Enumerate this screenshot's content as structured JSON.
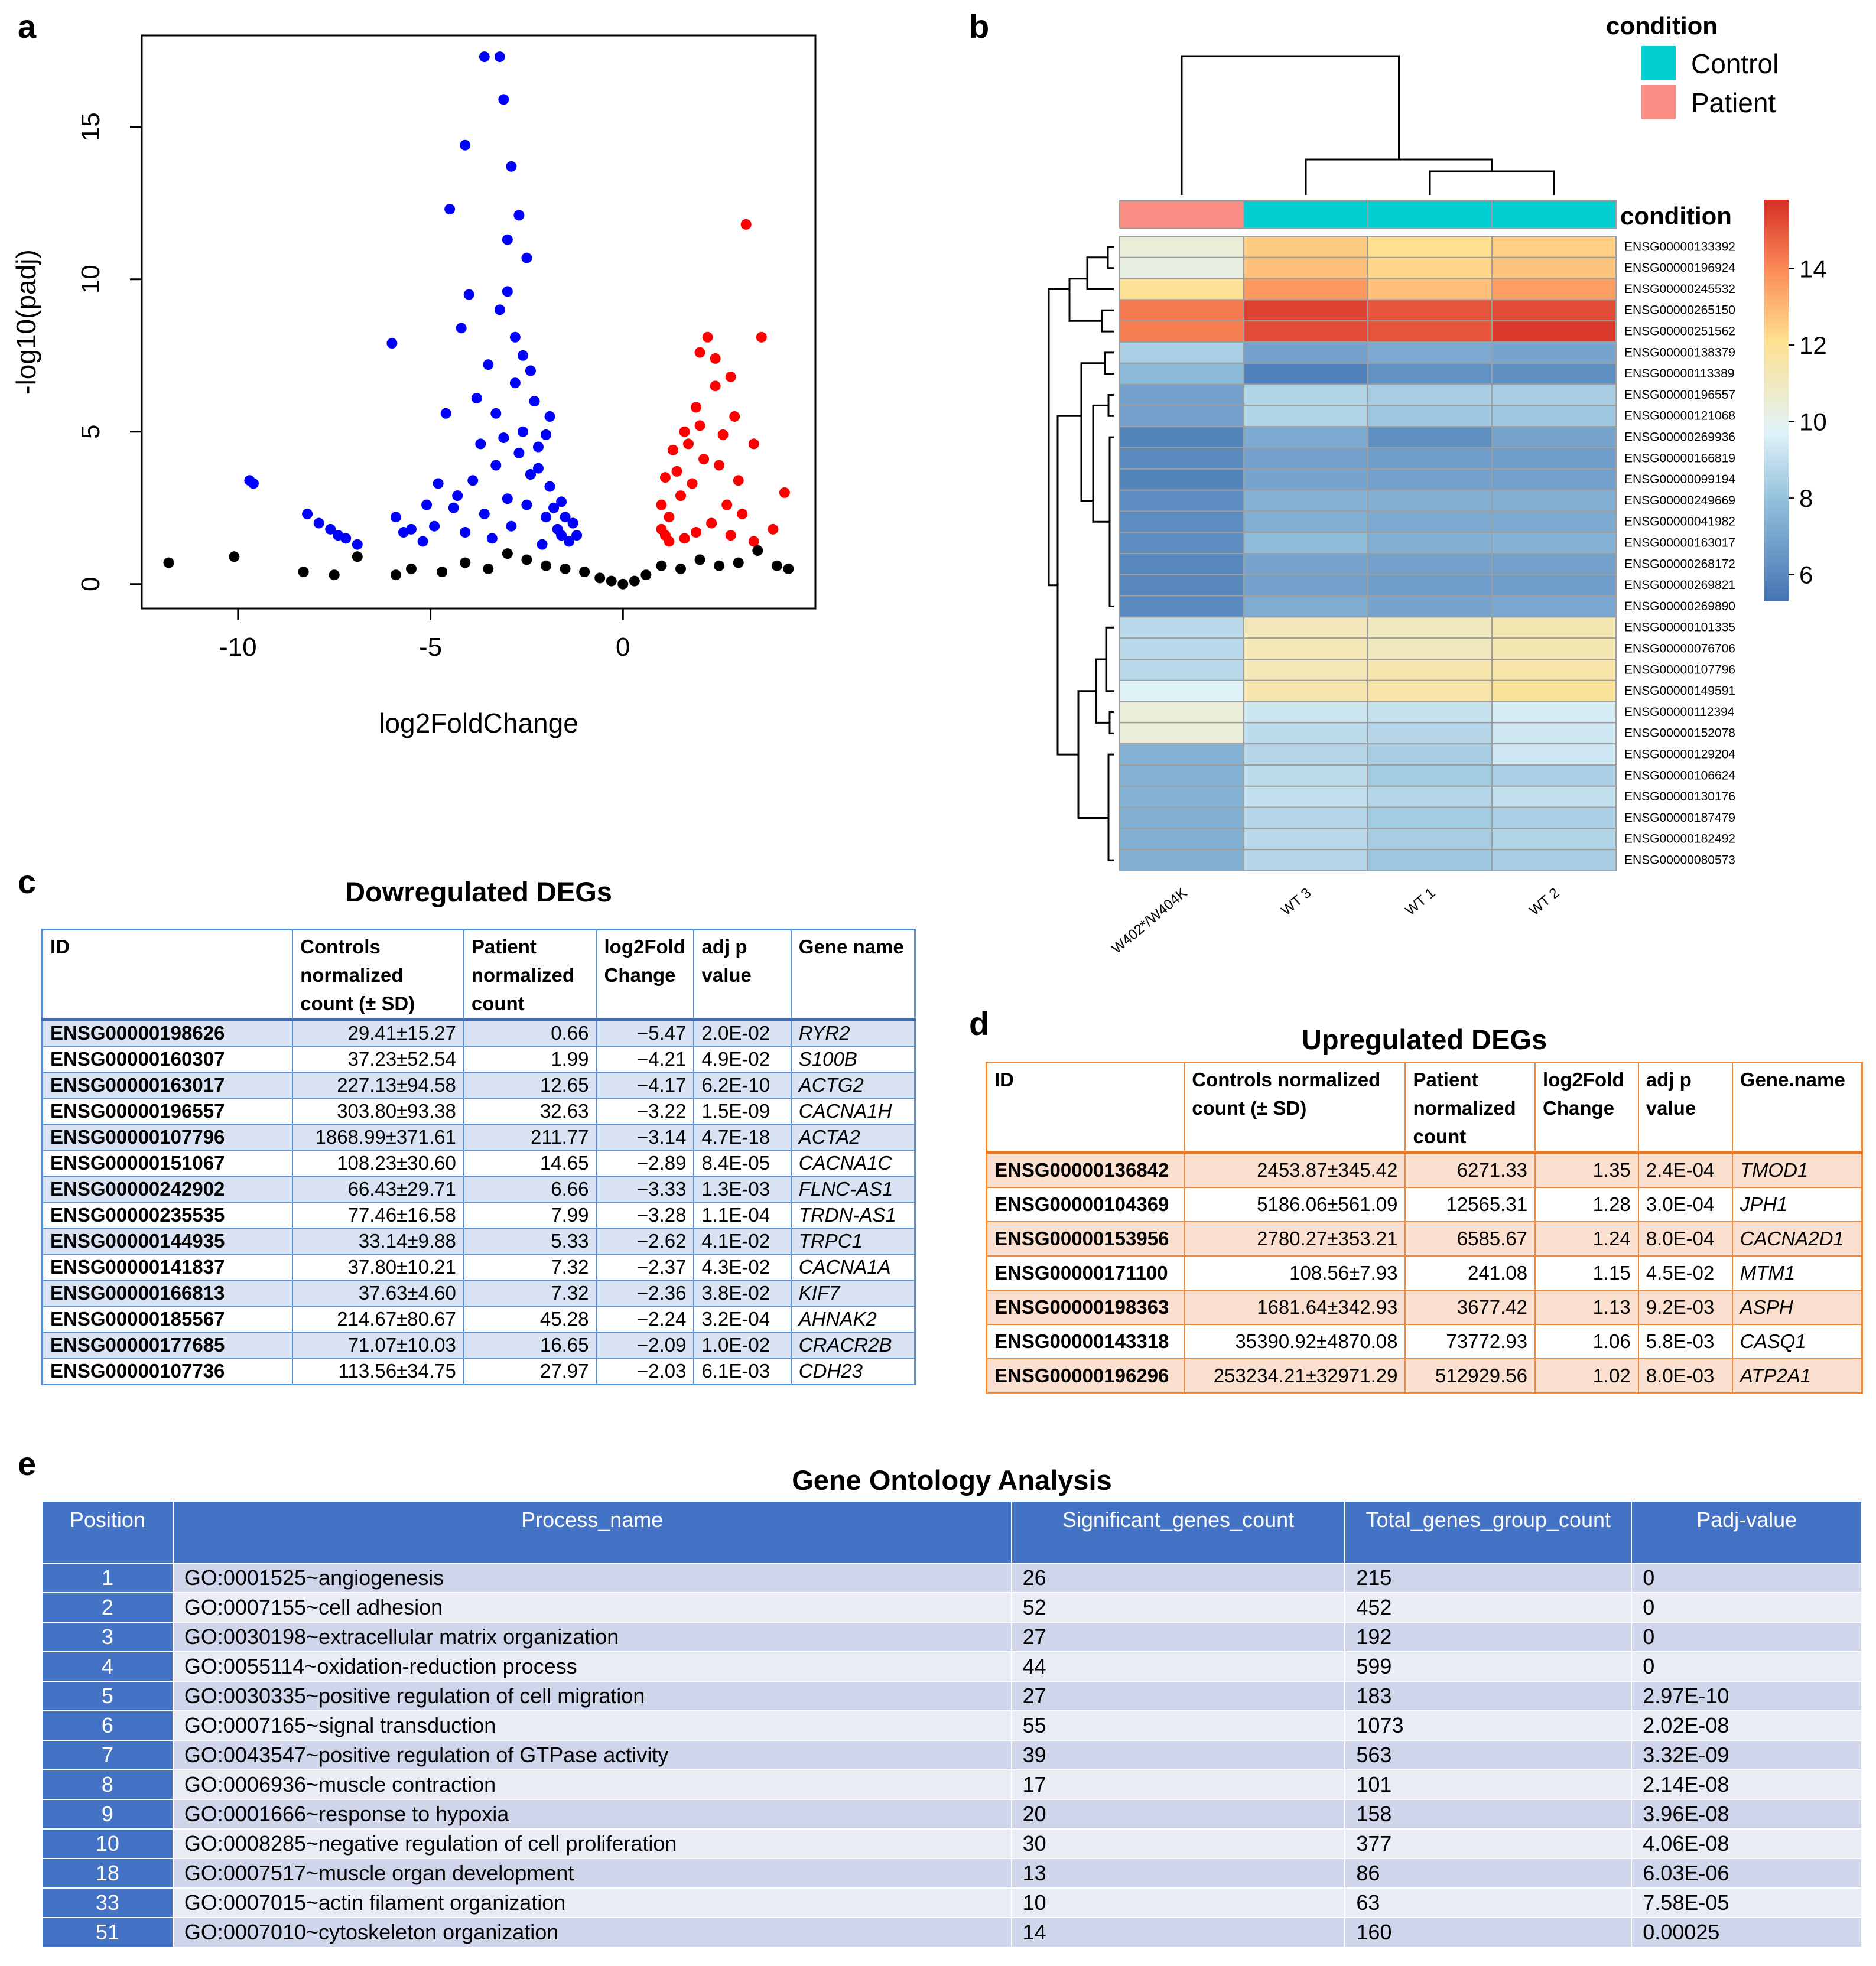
{
  "panels": {
    "a": "a",
    "b": "b",
    "c": "c",
    "d": "d",
    "e": "e"
  },
  "volcano": {
    "xlabel": "log2FoldChange",
    "ylabel": "-log10(padj)",
    "xticks": [
      "-10",
      "-5",
      "0"
    ],
    "yticks": [
      "0",
      "5",
      "10",
      "15"
    ],
    "colors": {
      "down": "#0000ff",
      "up": "#ff0000",
      "ns": "#000000"
    }
  },
  "chart_data": {
    "type": "scatter",
    "title": "",
    "xlabel": "log2FoldChange",
    "ylabel": "-log10(padj)",
    "xlim": [
      -12.5,
      5
    ],
    "ylim": [
      -0.8,
      18
    ],
    "series": [
      {
        "name": "downregulated",
        "color": "#0000ff",
        "points": [
          [
            -3.6,
            17.3
          ],
          [
            -3.2,
            17.3
          ],
          [
            -3.1,
            15.9
          ],
          [
            -4.1,
            14.4
          ],
          [
            -2.9,
            13.7
          ],
          [
            -4.5,
            12.3
          ],
          [
            -3.0,
            11.3
          ],
          [
            -4.0,
            9.5
          ],
          [
            -3.2,
            9.0
          ],
          [
            -4.2,
            8.4
          ],
          [
            -2.8,
            8.1
          ],
          [
            -6.0,
            7.9
          ],
          [
            -3.5,
            7.2
          ],
          [
            -2.6,
            7.5
          ],
          [
            -9.7,
            3.4
          ],
          [
            -9.6,
            3.3
          ],
          [
            -8.2,
            2.3
          ],
          [
            -7.9,
            2.0
          ],
          [
            -7.6,
            1.8
          ],
          [
            -7.4,
            1.6
          ],
          [
            -7.2,
            1.5
          ],
          [
            -6.9,
            1.3
          ],
          [
            -5.9,
            2.2
          ],
          [
            -5.5,
            1.8
          ],
          [
            -5.1,
            2.6
          ],
          [
            -4.8,
            3.3
          ],
          [
            -4.6,
            5.6
          ],
          [
            -3.8,
            6.1
          ],
          [
            -2.3,
            6.0
          ],
          [
            -1.9,
            5.5
          ],
          [
            -3.3,
            3.9
          ],
          [
            -2.7,
            4.3
          ],
          [
            -2.2,
            4.5
          ],
          [
            -1.6,
            2.7
          ],
          [
            -1.3,
            2.0
          ],
          [
            -5.2,
            1.4
          ],
          [
            -4.9,
            1.9
          ],
          [
            -4.3,
            2.9
          ],
          [
            -3.9,
            3.4
          ],
          [
            -2.5,
            2.6
          ],
          [
            -2.0,
            2.2
          ],
          [
            -1.6,
            1.6
          ],
          [
            -1.9,
            3.2
          ],
          [
            -2.4,
            3.6
          ],
          [
            -3.0,
            2.8
          ],
          [
            -3.6,
            2.3
          ],
          [
            -4.1,
            1.7
          ],
          [
            -3.4,
            1.5
          ],
          [
            -2.9,
            1.9
          ],
          [
            -2.1,
            1.3
          ],
          [
            -1.4,
            1.4
          ],
          [
            -1.2,
            1.6
          ],
          [
            -1.7,
            1.8
          ],
          [
            -2.6,
            5.0
          ],
          [
            -3.1,
            4.8
          ],
          [
            -2.2,
            3.8
          ],
          [
            -1.8,
            2.5
          ],
          [
            -4.4,
            2.5
          ],
          [
            -5.7,
            1.7
          ],
          [
            -3.7,
            4.6
          ],
          [
            -2.0,
            4.9
          ],
          [
            -1.5,
            2.2
          ],
          [
            -2.8,
            6.6
          ],
          [
            -3.3,
            5.6
          ],
          [
            -2.4,
            7.0
          ],
          [
            -3.0,
            9.6
          ],
          [
            -2.7,
            12.1
          ],
          [
            -2.5,
            10.7
          ]
        ]
      },
      {
        "name": "upregulated",
        "color": "#ff0000",
        "points": [
          [
            3.2,
            11.8
          ],
          [
            3.6,
            8.1
          ],
          [
            2.2,
            8.1
          ],
          [
            2.0,
            7.6
          ],
          [
            2.4,
            6.5
          ],
          [
            2.8,
            6.8
          ],
          [
            1.9,
            5.8
          ],
          [
            1.6,
            5.0
          ],
          [
            1.3,
            4.4
          ],
          [
            1.1,
            3.5
          ],
          [
            1.0,
            2.6
          ],
          [
            1.0,
            1.8
          ],
          [
            1.2,
            1.4
          ],
          [
            1.5,
            2.9
          ],
          [
            1.8,
            3.3
          ],
          [
            2.1,
            4.1
          ],
          [
            2.5,
            3.9
          ],
          [
            3.0,
            3.4
          ],
          [
            3.1,
            2.3
          ],
          [
            2.7,
            2.6
          ],
          [
            2.3,
            2.0
          ],
          [
            1.9,
            1.7
          ],
          [
            1.6,
            1.5
          ],
          [
            4.2,
            3.0
          ],
          [
            3.9,
            1.8
          ],
          [
            3.4,
            1.4
          ],
          [
            2.8,
            1.6
          ],
          [
            1.4,
            3.7
          ],
          [
            1.7,
            4.6
          ],
          [
            2.0,
            5.2
          ],
          [
            1.2,
            2.2
          ],
          [
            1.1,
            1.6
          ],
          [
            2.6,
            4.9
          ],
          [
            3.4,
            4.6
          ],
          [
            2.9,
            5.5
          ],
          [
            2.4,
            7.4
          ]
        ]
      },
      {
        "name": "not significant",
        "color": "#000000",
        "points": [
          [
            -11.8,
            0.7
          ],
          [
            -10.1,
            0.9
          ],
          [
            -8.3,
            0.4
          ],
          [
            -7.5,
            0.3
          ],
          [
            -6.9,
            0.9
          ],
          [
            -5.9,
            0.3
          ],
          [
            -5.5,
            0.5
          ],
          [
            -4.7,
            0.4
          ],
          [
            -4.1,
            0.7
          ],
          [
            -3.5,
            0.5
          ],
          [
            -3.0,
            1.0
          ],
          [
            -2.5,
            0.8
          ],
          [
            -2.0,
            0.6
          ],
          [
            -1.5,
            0.5
          ],
          [
            -1.0,
            0.4
          ],
          [
            -0.6,
            0.2
          ],
          [
            -0.3,
            0.1
          ],
          [
            0.0,
            0.0
          ],
          [
            0.3,
            0.1
          ],
          [
            0.6,
            0.3
          ],
          [
            1.0,
            0.6
          ],
          [
            1.5,
            0.5
          ],
          [
            2.0,
            0.8
          ],
          [
            2.5,
            0.6
          ],
          [
            3.0,
            0.7
          ],
          [
            3.5,
            1.1
          ],
          [
            4.0,
            0.6
          ],
          [
            4.3,
            0.5
          ]
        ]
      }
    ]
  },
  "heatmap": {
    "legend_title": "condition",
    "legend_items": [
      {
        "label": "Control",
        "color": "#00ced1"
      },
      {
        "label": "Patient",
        "color": "#fa8e85"
      }
    ],
    "annotation_label": "condition",
    "colorbar_ticks": [
      "14",
      "12",
      "10",
      "8",
      "6"
    ],
    "columns": [
      "W402*/W404K",
      "WT 3",
      "WT 1",
      "WT 2"
    ],
    "column_conditions": [
      "Patient",
      "Control",
      "Control",
      "Control"
    ],
    "genes": [
      "ENSG00000133392",
      "ENSG00000196924",
      "ENSG00000245532",
      "ENSG00000265150",
      "ENSG00000251562",
      "ENSG00000138379",
      "ENSG00000113389",
      "ENSG00000196557",
      "ENSG00000121068",
      "ENSG00000269936",
      "ENSG00000166819",
      "ENSG00000099194",
      "ENSG00000249669",
      "ENSG00000041982",
      "ENSG00000163017",
      "ENSG00000268172",
      "ENSG00000269821",
      "ENSG00000269890",
      "ENSG00000101335",
      "ENSG00000076706",
      "ENSG00000107796",
      "ENSG00000149591",
      "ENSG00000112394",
      "ENSG00000152078",
      "ENSG00000129204",
      "ENSG00000106624",
      "ENSG00000130176",
      "ENSG00000187479",
      "ENSG00000182492",
      "ENSG00000080573"
    ],
    "values": [
      [
        10.5,
        12.4,
        12.0,
        12.3
      ],
      [
        10.3,
        12.6,
        12.2,
        12.5
      ],
      [
        11.9,
        13.3,
        12.6,
        13.2
      ],
      [
        13.9,
        15.1,
        14.7,
        14.9
      ],
      [
        13.8,
        14.9,
        14.7,
        15.3
      ],
      [
        8.6,
        7.0,
        7.3,
        7.1
      ],
      [
        7.8,
        5.9,
        6.5,
        6.4
      ],
      [
        7.0,
        8.7,
        8.5,
        8.5
      ],
      [
        7.0,
        8.7,
        8.3,
        8.3
      ],
      [
        6.0,
        7.3,
        6.4,
        7.1
      ],
      [
        6.2,
        7.0,
        6.9,
        6.9
      ],
      [
        6.0,
        7.1,
        7.0,
        7.0
      ],
      [
        6.3,
        7.6,
        7.5,
        7.5
      ],
      [
        6.3,
        7.5,
        7.3,
        7.3
      ],
      [
        6.3,
        7.9,
        7.5,
        7.6
      ],
      [
        6.1,
        7.1,
        7.0,
        7.0
      ],
      [
        6.1,
        7.0,
        6.9,
        6.9
      ],
      [
        6.2,
        7.4,
        7.1,
        7.2
      ],
      [
        8.9,
        11.1,
        11.0,
        11.3
      ],
      [
        8.9,
        11.2,
        11.0,
        11.3
      ],
      [
        8.9,
        11.2,
        11.4,
        11.5
      ],
      [
        9.8,
        11.4,
        11.5,
        11.8
      ],
      [
        10.5,
        9.3,
        9.2,
        9.6
      ],
      [
        10.5,
        9.0,
        8.8,
        9.4
      ],
      [
        7.6,
        8.8,
        8.5,
        9.4
      ],
      [
        7.6,
        9.0,
        8.4,
        8.6
      ],
      [
        7.6,
        9.1,
        8.8,
        9.1
      ],
      [
        7.5,
        8.8,
        8.4,
        8.6
      ],
      [
        7.5,
        8.9,
        8.5,
        8.7
      ],
      [
        7.5,
        8.8,
        8.3,
        8.5
      ]
    ]
  },
  "down": {
    "title": "Dowregulated DEGs",
    "headers": [
      "ID",
      "Controls normalized count (± SD)",
      "Patient normalized count",
      "log2Fold Change",
      "adj p value",
      "Gene name"
    ],
    "rows": [
      [
        "ENSG00000198626",
        "29.41±15.27",
        "0.66",
        "−5.47",
        "2.0E-02",
        "RYR2"
      ],
      [
        "ENSG00000160307",
        "37.23±52.54",
        "1.99",
        "−4.21",
        "4.9E-02",
        "S100B"
      ],
      [
        "ENSG00000163017",
        "227.13±94.58",
        "12.65",
        "−4.17",
        "6.2E-10",
        "ACTG2"
      ],
      [
        "ENSG00000196557",
        "303.80±93.38",
        "32.63",
        "−3.22",
        "1.5E-09",
        "CACNA1H"
      ],
      [
        "ENSG00000107796",
        "1868.99±371.61",
        "211.77",
        "−3.14",
        "4.7E-18",
        "ACTA2"
      ],
      [
        "ENSG00000151067",
        "108.23±30.60",
        "14.65",
        "−2.89",
        "8.4E-05",
        "CACNA1C"
      ],
      [
        "ENSG00000242902",
        "66.43±29.71",
        "6.66",
        "−3.33",
        "1.3E-03",
        "FLNC-AS1"
      ],
      [
        "ENSG00000235535",
        "77.46±16.58",
        "7.99",
        "−3.28",
        "1.1E-04",
        "TRDN-AS1"
      ],
      [
        "ENSG00000144935",
        "33.14±9.88",
        "5.33",
        "−2.62",
        "4.1E-02",
        "TRPC1"
      ],
      [
        "ENSG00000141837",
        "37.80±10.21",
        "7.32",
        "−2.37",
        "4.3E-02",
        "CACNA1A"
      ],
      [
        "ENSG00000166813",
        "37.63±4.60",
        "7.32",
        "−2.36",
        "3.8E-02",
        "KIF7"
      ],
      [
        "ENSG00000185567",
        "214.67±80.67",
        "45.28",
        "−2.24",
        "3.2E-04",
        "AHNAK2"
      ],
      [
        "ENSG00000177685",
        "71.07±10.03",
        "16.65",
        "−2.09",
        "1.0E-02",
        "CRACR2B"
      ],
      [
        "ENSG00000107736",
        "113.56±34.75",
        "27.97",
        "−2.03",
        "6.1E-03",
        "CDH23"
      ]
    ]
  },
  "up": {
    "title": "Upregulated DEGs",
    "headers": [
      "ID",
      "Controls normalized count (± SD)",
      "Patient normalized count",
      "log2Fold Change",
      "adj p value",
      "Gene.name"
    ],
    "rows": [
      [
        "ENSG00000136842",
        "2453.87±345.42",
        "6271.33",
        "1.35",
        "2.4E-04",
        "TMOD1"
      ],
      [
        "ENSG00000104369",
        "5186.06±561.09",
        "12565.31",
        "1.28",
        "3.0E-04",
        "JPH1"
      ],
      [
        "ENSG00000153956",
        "2780.27±353.21",
        "6585.67",
        "1.24",
        "8.0E-04",
        "CACNA2D1"
      ],
      [
        "ENSG00000171100",
        "108.56±7.93",
        "241.08",
        "1.15",
        "4.5E-02",
        "MTM1"
      ],
      [
        "ENSG00000198363",
        "1681.64±342.93",
        "3677.42",
        "1.13",
        "9.2E-03",
        "ASPH"
      ],
      [
        "ENSG00000143318",
        "35390.92±4870.08",
        "73772.93",
        "1.06",
        "5.8E-03",
        "CASQ1"
      ],
      [
        "ENSG00000196296",
        "253234.21±32971.29",
        "512929.56",
        "1.02",
        "8.0E-03",
        "ATP2A1"
      ]
    ]
  },
  "go": {
    "title": "Gene Ontology Analysis",
    "headers": [
      "Position",
      "Process_name",
      "Significant_genes_count",
      "Total_genes_group_count",
      "Padj-value"
    ],
    "rows": [
      [
        "1",
        "GO:0001525~angiogenesis",
        "26",
        "215",
        "0"
      ],
      [
        "2",
        "GO:0007155~cell adhesion",
        "52",
        "452",
        "0"
      ],
      [
        "3",
        "GO:0030198~extracellular matrix organization",
        "27",
        "192",
        "0"
      ],
      [
        "4",
        "GO:0055114~oxidation-reduction process",
        "44",
        "599",
        "0"
      ],
      [
        "5",
        "GO:0030335~positive regulation of cell migration",
        "27",
        "183",
        "2.97E-10"
      ],
      [
        "6",
        "GO:0007165~signal transduction",
        "55",
        "1073",
        "2.02E-08"
      ],
      [
        "7",
        "GO:0043547~positive regulation of GTPase activity",
        "39",
        "563",
        "3.32E-09"
      ],
      [
        "8",
        "GO:0006936~muscle contraction",
        "17",
        "101",
        "2.14E-08"
      ],
      [
        "9",
        "GO:0001666~response to hypoxia",
        "20",
        "158",
        "3.96E-08"
      ],
      [
        "10",
        "GO:0008285~negative regulation of cell proliferation",
        "30",
        "377",
        "4.06E-08"
      ],
      [
        "18",
        "GO:0007517~muscle organ development",
        "13",
        "86",
        "6.03E-06"
      ],
      [
        "33",
        "GO:0007015~actin filament organization",
        "10",
        "63",
        "7.58E-05"
      ],
      [
        "51",
        "GO:0007010~cytoskeleton organization",
        "14",
        "160",
        "0.00025"
      ]
    ]
  }
}
